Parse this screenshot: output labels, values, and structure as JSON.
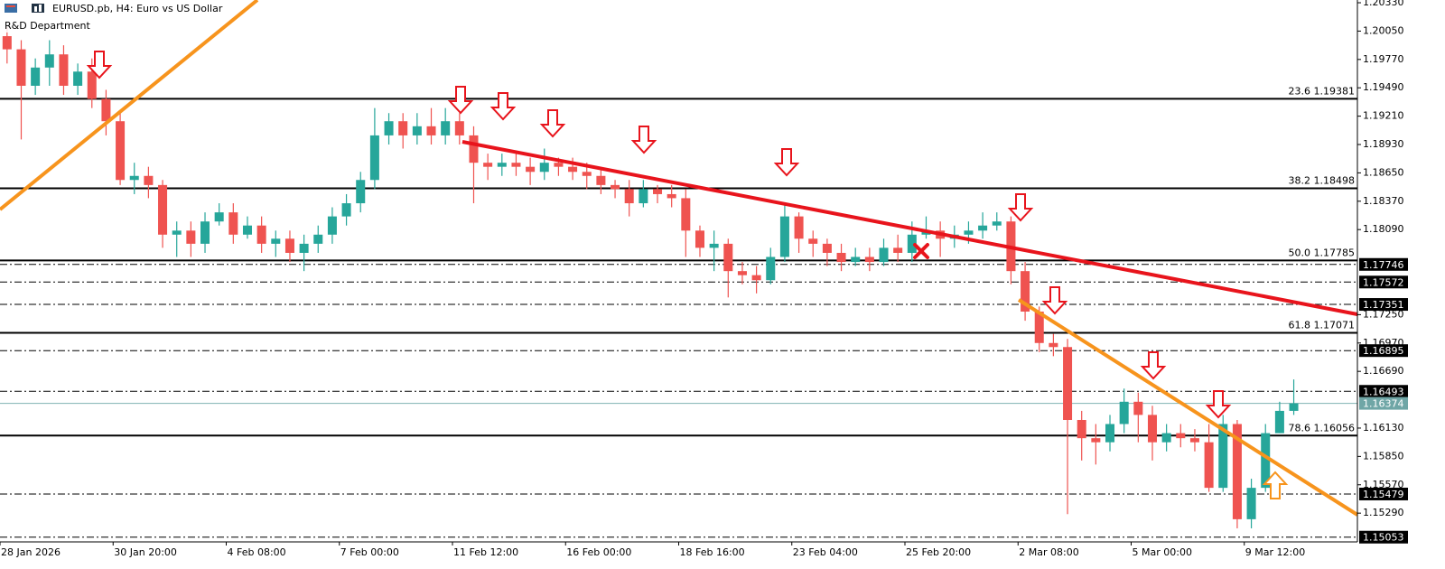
{
  "chart_data": {
    "type": "candlestick",
    "title": "EURUSD.pb, H4:  Euro vs US Dollar",
    "subtitle": "R&D Department",
    "up_color": "#26a69a",
    "down_color": "#ef5350",
    "categories": [
      "28 Jan 2026",
      null,
      null,
      null,
      null,
      null,
      null,
      null,
      "30 Jan 20:00",
      null,
      null,
      null,
      null,
      null,
      null,
      null,
      "4 Feb 08:00",
      null,
      null,
      null,
      null,
      null,
      null,
      null,
      "7 Feb 00:00",
      null,
      null,
      null,
      null,
      null,
      null,
      null,
      "11 Feb 12:00",
      null,
      null,
      null,
      null,
      null,
      null,
      null,
      "16 Feb 00:00",
      null,
      null,
      null,
      null,
      null,
      null,
      null,
      "18 Feb 16:00",
      null,
      null,
      null,
      null,
      null,
      null,
      null,
      "23 Feb 04:00",
      null,
      null,
      null,
      null,
      null,
      null,
      null,
      "25 Feb 20:00",
      null,
      null,
      null,
      null,
      null,
      null,
      null,
      "2 Mar 08:00",
      null,
      null,
      null,
      null,
      null,
      null,
      null,
      "5 Mar 00:00",
      null,
      null,
      null,
      null,
      null,
      null,
      null,
      "9 Mar 12:00",
      null,
      null,
      null
    ],
    "open": [
      1.2,
      1.1987,
      1.1951,
      1.1969,
      1.1982,
      1.1951,
      1.1965,
      1.1938,
      1.1916,
      1.1858,
      1.1862,
      1.1853,
      1.1804,
      1.1808,
      1.1795,
      1.1817,
      1.1826,
      1.1804,
      1.1813,
      1.1795,
      1.18,
      1.1786,
      1.1795,
      1.1804,
      1.1822,
      1.1835,
      1.1858,
      1.1902,
      1.1916,
      1.1902,
      1.1911,
      1.1902,
      1.1916,
      1.1902,
      1.1875,
      1.1871,
      1.1875,
      1.1871,
      1.1866,
      1.1875,
      1.1871,
      1.1866,
      1.1862,
      1.1853,
      1.1849,
      1.1835,
      1.1849,
      1.1844,
      1.184,
      1.1808,
      1.1791,
      1.1795,
      1.1768,
      1.1764,
      1.1759,
      1.1782,
      1.1822,
      1.18,
      1.1795,
      1.1786,
      1.1777,
      1.1782,
      1.1777,
      1.1791,
      1.1786,
      1.1804,
      1.1808,
      1.18,
      1.1804,
      1.1808,
      1.1813,
      1.1817,
      1.1768,
      1.1728,
      1.1697,
      1.1693,
      1.1621,
      1.1603,
      1.1599,
      1.1617,
      1.1639,
      1.1626,
      1.1599,
      1.1608,
      1.1603,
      1.1599,
      1.1554,
      1.1617,
      1.1523,
      1.1554,
      1.1608,
      1.163
    ],
    "high": [
      1.2009,
      1.1996,
      1.1978,
      1.1996,
      1.1991,
      1.1973,
      1.1978,
      1.1947,
      1.1924,
      1.1875,
      1.1871,
      1.1858,
      1.1817,
      1.1817,
      1.1826,
      1.1835,
      1.1835,
      1.1822,
      1.1822,
      1.1808,
      1.1808,
      1.1804,
      1.1813,
      1.1831,
      1.1844,
      1.1866,
      1.1929,
      1.1924,
      1.1924,
      1.1924,
      1.1929,
      1.1929,
      1.1924,
      1.1911,
      1.1884,
      1.1884,
      1.1884,
      1.188,
      1.1889,
      1.188,
      1.188,
      1.1875,
      1.1871,
      1.1858,
      1.1858,
      1.1858,
      1.1853,
      1.1853,
      1.1849,
      1.1813,
      1.1808,
      1.18,
      1.1777,
      1.1773,
      1.1791,
      1.1835,
      1.1826,
      1.1808,
      1.18,
      1.1795,
      1.1791,
      1.1791,
      1.18,
      1.1804,
      1.1817,
      1.1822,
      1.1817,
      1.1813,
      1.1817,
      1.1826,
      1.1826,
      1.1822,
      1.1777,
      1.1733,
      1.1706,
      1.1701,
      1.163,
      1.1617,
      1.1626,
      1.1652,
      1.1648,
      1.1635,
      1.1617,
      1.1617,
      1.1612,
      1.1617,
      1.1626,
      1.1621,
      1.1563,
      1.1617,
      1.1639,
      1.1661
    ],
    "low": [
      1.1973,
      1.1898,
      1.1942,
      1.1951,
      1.1942,
      1.1942,
      1.1929,
      1.1902,
      1.1853,
      1.1844,
      1.184,
      1.1791,
      1.1782,
      1.1782,
      1.1786,
      1.1813,
      1.1795,
      1.18,
      1.1786,
      1.1782,
      1.1777,
      1.1768,
      1.1786,
      1.1795,
      1.1813,
      1.1826,
      1.1849,
      1.1893,
      1.1889,
      1.1893,
      1.1893,
      1.1893,
      1.1893,
      1.1835,
      1.1858,
      1.1862,
      1.1862,
      1.1853,
      1.1858,
      1.1862,
      1.1858,
      1.1849,
      1.1844,
      1.184,
      1.1822,
      1.1831,
      1.1835,
      1.1831,
      1.1782,
      1.1782,
      1.1768,
      1.1742,
      1.1755,
      1.1746,
      1.1755,
      1.1777,
      1.1786,
      1.1782,
      1.1773,
      1.1768,
      1.1773,
      1.1768,
      1.1773,
      1.1777,
      1.1777,
      1.18,
      1.1782,
      1.1791,
      1.1795,
      1.18,
      1.1808,
      1.1755,
      1.1719,
      1.1688,
      1.1684,
      1.1528,
      1.1581,
      1.1577,
      1.159,
      1.1608,
      1.1599,
      1.1581,
      1.159,
      1.1594,
      1.159,
      1.155,
      1.155,
      1.1514,
      1.1514,
      1.155,
      1.1608,
      1.1626
    ],
    "close": [
      1.1987,
      1.1951,
      1.1969,
      1.1982,
      1.1951,
      1.1965,
      1.1938,
      1.1916,
      1.1858,
      1.1862,
      1.1853,
      1.1804,
      1.1808,
      1.1795,
      1.1817,
      1.1826,
      1.1804,
      1.1813,
      1.1795,
      1.18,
      1.1786,
      1.1795,
      1.1804,
      1.1822,
      1.1835,
      1.1858,
      1.1902,
      1.1916,
      1.1902,
      1.1911,
      1.1902,
      1.1916,
      1.1902,
      1.1875,
      1.1871,
      1.1875,
      1.1871,
      1.1866,
      1.1875,
      1.1871,
      1.1866,
      1.1862,
      1.1853,
      1.1849,
      1.1835,
      1.1849,
      1.1844,
      1.184,
      1.1808,
      1.1791,
      1.1795,
      1.1768,
      1.1764,
      1.1759,
      1.1782,
      1.1822,
      1.18,
      1.1795,
      1.1786,
      1.1777,
      1.1782,
      1.1777,
      1.1791,
      1.1786,
      1.1804,
      1.1808,
      1.18,
      1.1804,
      1.1808,
      1.1813,
      1.1817,
      1.1768,
      1.1728,
      1.1697,
      1.1693,
      1.1621,
      1.1603,
      1.1599,
      1.1617,
      1.1639,
      1.1626,
      1.1599,
      1.1608,
      1.1603,
      1.1599,
      1.1554,
      1.1617,
      1.1523,
      1.1554,
      1.1608,
      1.163,
      1.16374
    ],
    "ylim": [
      1.15006,
      1.20357
    ],
    "yticks": [
      {
        "value": 1.2033,
        "label": "1.20330"
      },
      {
        "value": 1.2005,
        "label": "1.20050"
      },
      {
        "value": 1.1977,
        "label": "1.19770"
      },
      {
        "value": 1.1949,
        "label": "1.19490"
      },
      {
        "value": 1.1921,
        "label": "1.19210"
      },
      {
        "value": 1.1893,
        "label": "1.18930"
      },
      {
        "value": 1.1865,
        "label": "1.18650"
      },
      {
        "value": 1.1837,
        "label": "1.18370"
      },
      {
        "value": 1.1809,
        "label": "1.18090"
      },
      {
        "value": 1.1725,
        "label": "1.17250"
      },
      {
        "value": 1.1697,
        "label": "1.16970"
      },
      {
        "value": 1.1669,
        "label": "1.16690"
      },
      {
        "value": 1.1613,
        "label": "1.16130"
      },
      {
        "value": 1.1585,
        "label": "1.15850"
      },
      {
        "value": 1.1557,
        "label": "1.15570"
      },
      {
        "value": 1.1529,
        "label": "1.15290"
      }
    ],
    "fib_levels": [
      {
        "ratio": "23.6",
        "price": 1.19381
      },
      {
        "ratio": "38.2",
        "price": 1.18498
      },
      {
        "ratio": "50.0",
        "price": 1.17785
      },
      {
        "ratio": "61.8",
        "price": 1.17071
      },
      {
        "ratio": "78.6",
        "price": 1.16056
      }
    ],
    "levels": [
      1.17746,
      1.17572,
      1.17351,
      1.16895,
      1.16493,
      1.15479,
      1.15053
    ],
    "current_price": 1.16374
  }
}
